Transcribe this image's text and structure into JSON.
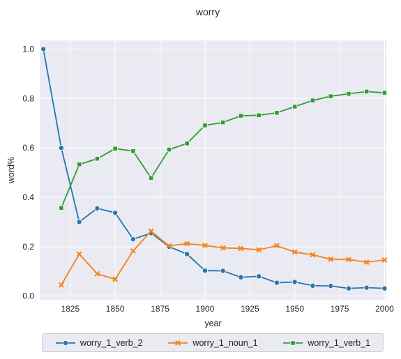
{
  "chart_data": {
    "type": "line",
    "title": "worry",
    "xlabel": "year",
    "ylabel": "word%",
    "xlim": [
      1808,
      2001
    ],
    "ylim": [
      -0.015,
      1.035
    ],
    "xticks": [
      1825,
      1850,
      1875,
      1900,
      1925,
      1950,
      1975,
      2000
    ],
    "yticks": [
      0.0,
      0.2,
      0.4,
      0.6,
      0.8,
      1.0
    ],
    "grid": true,
    "legend_position": "bottom-center",
    "series": [
      {
        "name": "worry_1_verb_2",
        "color": "#1f77b4",
        "marker": "circle",
        "x": [
          1810,
          1820,
          1830,
          1840,
          1850,
          1860,
          1870,
          1880,
          1890,
          1900,
          1910,
          1920,
          1930,
          1940,
          1950,
          1960,
          1970,
          1980,
          1990,
          2000
        ],
        "y": [
          1.0,
          0.6,
          0.3,
          0.355,
          0.337,
          0.23,
          0.255,
          0.2,
          0.17,
          0.103,
          0.102,
          0.076,
          0.08,
          0.054,
          0.057,
          0.042,
          0.041,
          0.031,
          0.034,
          0.031
        ]
      },
      {
        "name": "worry_1_noun_1",
        "color": "#ff7f0e",
        "marker": "x",
        "x": [
          1820,
          1830,
          1840,
          1850,
          1860,
          1870,
          1880,
          1890,
          1900,
          1910,
          1920,
          1930,
          1940,
          1950,
          1960,
          1970,
          1980,
          1990,
          2000
        ],
        "y": [
          0.045,
          0.17,
          0.09,
          0.068,
          0.183,
          0.263,
          0.203,
          0.212,
          0.205,
          0.195,
          0.193,
          0.187,
          0.204,
          0.178,
          0.167,
          0.149,
          0.148,
          0.137,
          0.146
        ]
      },
      {
        "name": "worry_1_verb_1",
        "color": "#2ca02c",
        "marker": "square",
        "x": [
          1820,
          1830,
          1840,
          1850,
          1860,
          1870,
          1880,
          1890,
          1900,
          1910,
          1920,
          1930,
          1940,
          1950,
          1960,
          1970,
          1980,
          1990,
          2000
        ],
        "y": [
          0.357,
          0.533,
          0.556,
          0.597,
          0.587,
          0.478,
          0.593,
          0.618,
          0.691,
          0.703,
          0.73,
          0.732,
          0.742,
          0.767,
          0.792,
          0.809,
          0.819,
          0.828,
          0.823
        ]
      }
    ]
  }
}
